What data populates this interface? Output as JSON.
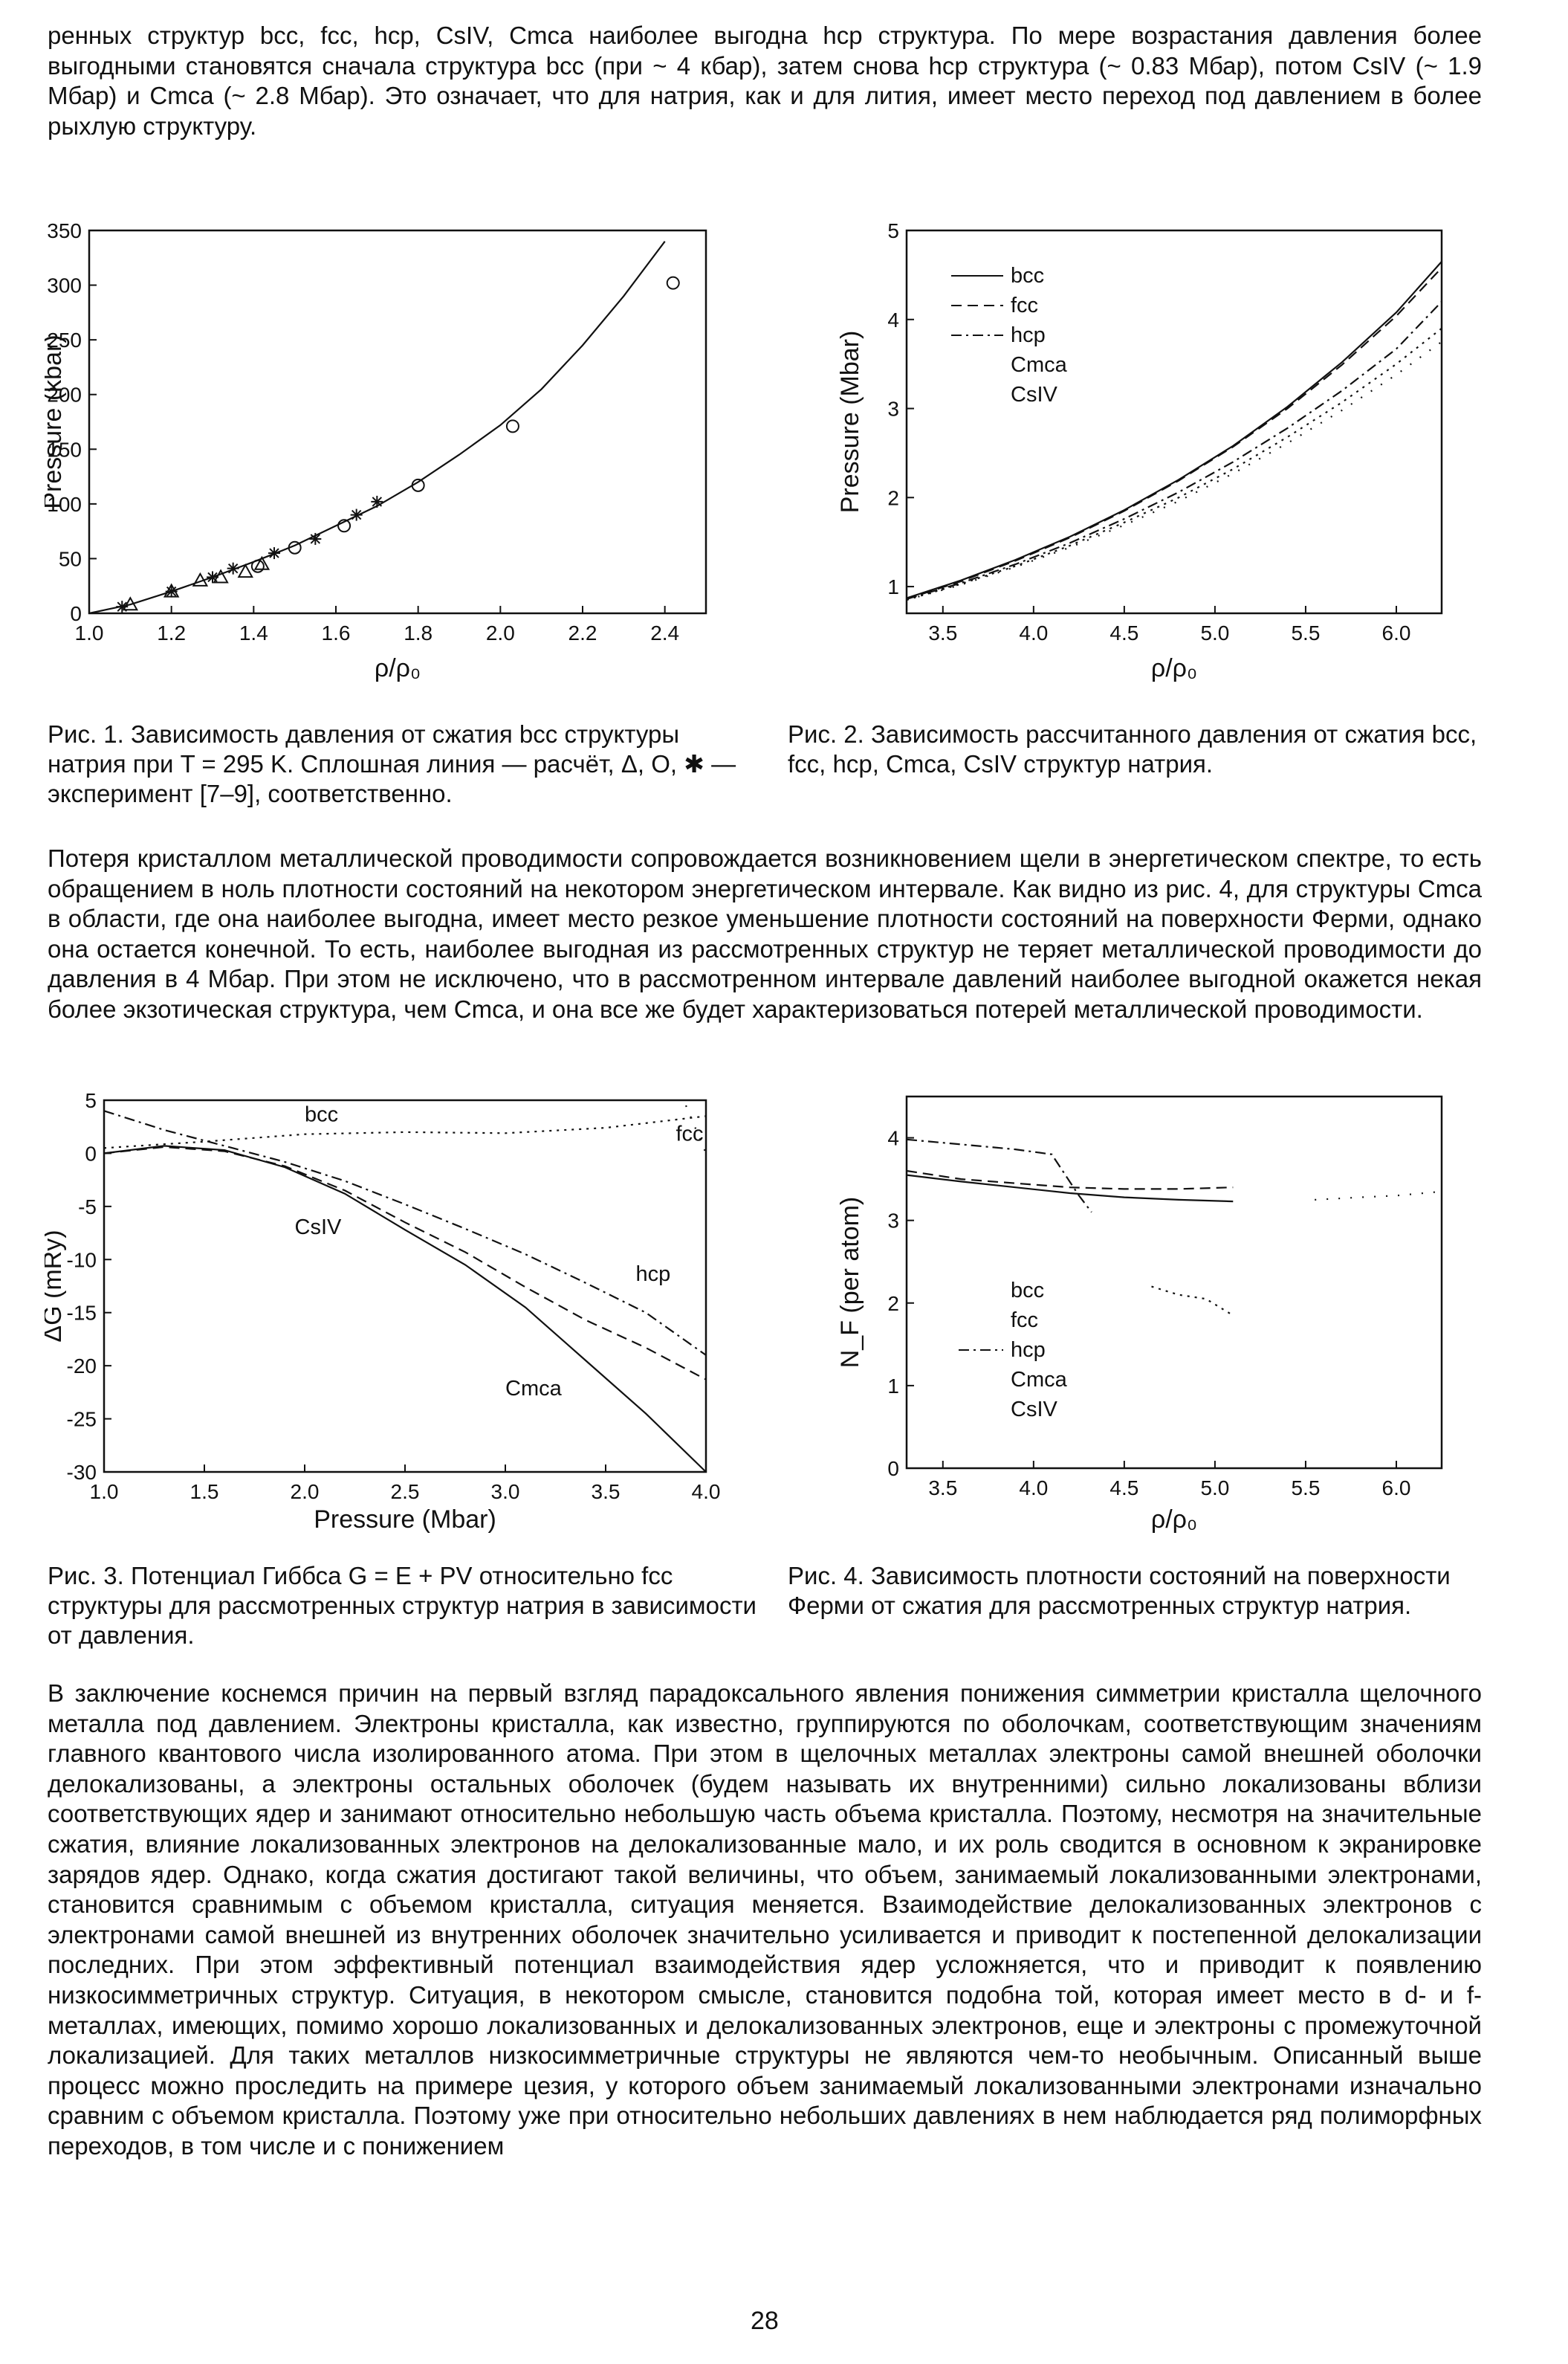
{
  "paragraphs": {
    "p1": "ренных структур bcc, fcc, hcp, CsIV, Cmca наиболее выгодна hcp структура. По мере возрастания давления более выгодными становятся сначала структура bcc (при ~ 4 кбар), затем снова hcp структура (~ 0.83 Мбар), потом CsIV (~ 1.9 Мбар) и Cmca (~ 2.8 Мбар). Это означает, что для натрия, как и для лития, имеет место переход под давлением в более рыхлую структуру.",
    "p2": "Потеря кристаллом металлической проводимости сопровождается возникновением щели в энергетическом спектре, то есть обращением в ноль плотности состояний на некотором энергетическом интервале. Как видно из рис. 4, для структуры Cmca в области, где она наиболее выгодна, имеет место резкое уменьшение плотности состояний на поверхности Ферми, однако она остается конечной. То есть, наиболее выгодная из рассмотренных структур не теряет металлической проводимости до давления в 4 Мбар. При этом не исключено, что в рассмотренном интервале давлений наиболее выгодной окажется некая более экзотическая структура, чем Cmca, и она все же будет характеризоваться потерей металлической проводимости.",
    "p3": "В заключение коснемся причин на первый взгляд парадоксального явления понижения симметрии кристалла щелочного металла под давлением. Электроны кристалла, как известно, группируются по оболочкам, соответствующим значениям главного квантового числа изолированного атома. При этом в щелочных металлах электроны самой внешней оболочки делокализованы, а электроны остальных оболочек (будем называть их внутренними) сильно локализованы вблизи соответствующих ядер и занимают относительно небольшую часть объема кристалла. Поэтому, несмотря на значительные сжатия, влияние локализованных электронов на делокализованные мало, и их роль сводится в основном к экранировке зарядов ядер. Однако, когда сжатия достигают такой величины, что объем, занимаемый локализованными электронами, становится сравнимым с объемом кристалла, ситуация меняется. Взаимодействие делокализованных электронов с электронами самой внешней из внутренних оболочек значительно усиливается и приводит к постепенной делокализации последних. При этом эффективный потенциал взаимодействия ядер усложняется, что и приводит к появлению низкосимметричных структур. Ситуация, в некотором смысле, становится подобна той, которая имеет место в d- и f-металлах, имеющих, помимо хорошо локализованных и делокализованных электронов, еще и электроны с промежуточной локализацией. Для таких металлов низкосимметричные структуры не являются чем-то необычным. Описанный выше процесс можно проследить на примере цезия, у которого объем занимаемый локализованными электронами изначально сравним с объемом кристалла. Поэтому уже при относительно небольших давлениях в нем наблюдается ряд полиморфных переходов, в том числе и с понижением"
  },
  "captions": {
    "fig1": "Рис. 1. Зависимость давления от сжатия bcc структуры натрия при T = 295 K. Сплошная линия — расчёт, Δ, O, ✱ — эксперимент [7–9], соответственно.",
    "fig2": "Рис. 2. Зависимость рассчитанного давления от сжатия bcc, fcc, hcp, Cmca, CsIV структур натрия.",
    "fig3": "Рис. 3. Потенциал Гиббса G = E + PV относительно fcc структуры для рассмотренных структур натрия в зависимости от давления.",
    "fig4": "Рис. 4. Зависимость плотности состояний на поверхности Ферми от сжатия для рассмотренных структур натрия."
  },
  "page_number": "28",
  "chart_data": [
    {
      "id": "fig1",
      "type": "line",
      "xlabel": "ρ/ρ₀",
      "ylabel": "Pressure (kbar)",
      "xlim": [
        1.0,
        2.5
      ],
      "ylim": [
        0,
        350
      ],
      "xticks": [
        "1.0",
        "1.2",
        "1.4",
        "1.6",
        "1.8",
        "2.0",
        "2.2",
        "2.4"
      ],
      "yticks": [
        "0",
        "50",
        "100",
        "150",
        "200",
        "250",
        "300",
        "350"
      ],
      "series": [
        {
          "style": "solid",
          "x": [
            1.0,
            1.1,
            1.2,
            1.3,
            1.4,
            1.5,
            1.6,
            1.7,
            1.8,
            1.9,
            2.0,
            2.1,
            2.2,
            2.3,
            2.4
          ],
          "y": [
            0,
            8,
            20,
            33,
            47,
            62,
            80,
            98,
            120,
            145,
            172,
            205,
            245,
            290,
            340
          ]
        },
        {
          "style": "circle",
          "x": [
            1.41,
            1.5,
            1.62,
            1.8,
            2.03,
            2.42
          ],
          "y": [
            43,
            60,
            80,
            117,
            171,
            302
          ]
        },
        {
          "style": "triangle",
          "x": [
            1.1,
            1.2,
            1.27,
            1.32,
            1.38,
            1.42
          ],
          "y": [
            8,
            20,
            30,
            33,
            38,
            45
          ]
        },
        {
          "style": "star",
          "x": [
            1.08,
            1.2,
            1.3,
            1.35,
            1.45,
            1.55,
            1.65,
            1.7
          ],
          "y": [
            6,
            20,
            33,
            41,
            55,
            68,
            90,
            102
          ]
        }
      ]
    },
    {
      "id": "fig2",
      "type": "line",
      "xlabel": "ρ/ρ₀",
      "ylabel": "Pressure (Mbar)",
      "xlim": [
        3.3,
        6.25
      ],
      "ylim": [
        0.7,
        5
      ],
      "xticks": [
        "3.5",
        "4.0",
        "4.5",
        "5.0",
        "5.5",
        "6.0"
      ],
      "yticks": [
        "1",
        "2",
        "3",
        "4",
        "5"
      ],
      "legend": [
        "bcc",
        "fcc",
        "hcp",
        "Cmca",
        "CsIV"
      ],
      "series": [
        {
          "name": "bcc",
          "style": "solid",
          "x": [
            3.3,
            3.6,
            3.9,
            4.2,
            4.5,
            4.8,
            5.1,
            5.4,
            5.7,
            6.0,
            6.25
          ],
          "y": [
            0.87,
            1.07,
            1.3,
            1.56,
            1.86,
            2.2,
            2.58,
            3.02,
            3.52,
            4.08,
            4.65
          ]
        },
        {
          "name": "fcc",
          "style": "dash",
          "x": [
            3.3,
            3.6,
            3.9,
            4.2,
            4.5,
            4.8,
            5.1,
            5.4,
            5.7,
            6.0,
            6.25
          ],
          "y": [
            0.86,
            1.06,
            1.29,
            1.55,
            1.85,
            2.19,
            2.57,
            3.0,
            3.49,
            4.04,
            4.58
          ]
        },
        {
          "name": "hcp",
          "style": "dashdot",
          "x": [
            3.3,
            3.6,
            3.9,
            4.2,
            4.5,
            4.8,
            5.1,
            5.4,
            5.7,
            6.0,
            6.25
          ],
          "y": [
            0.86,
            1.04,
            1.25,
            1.49,
            1.76,
            2.06,
            2.4,
            2.78,
            3.2,
            3.67,
            4.2
          ]
        },
        {
          "name": "Cmca",
          "style": "dot",
          "x": [
            3.3,
            3.6,
            3.9,
            4.2,
            4.5,
            4.8,
            5.1,
            5.4,
            5.7,
            6.0,
            6.25
          ],
          "y": [
            0.85,
            1.03,
            1.23,
            1.46,
            1.72,
            2.0,
            2.32,
            2.68,
            3.07,
            3.5,
            3.9
          ]
        },
        {
          "name": "CsIV",
          "style": "sparse",
          "x": [
            3.3,
            3.6,
            3.9,
            4.2,
            4.5,
            4.8,
            5.1,
            5.4,
            5.7,
            6.0,
            6.25
          ],
          "y": [
            0.85,
            1.02,
            1.22,
            1.44,
            1.69,
            1.96,
            2.27,
            2.61,
            2.98,
            3.38,
            3.75
          ]
        }
      ]
    },
    {
      "id": "fig3",
      "type": "line",
      "xlabel": "Pressure (Mbar)",
      "ylabel": "ΔG (mRy)",
      "xlim": [
        1.0,
        4.0
      ],
      "ylim": [
        -30,
        5
      ],
      "xticks": [
        "1.0",
        "1.5",
        "2.0",
        "2.5",
        "3.0",
        "3.5",
        "4.0"
      ],
      "yticks": [
        "5",
        "0",
        "-5",
        "-10",
        "-15",
        "-20",
        "-25",
        "-30"
      ],
      "annotations": [
        "bcc",
        "fcc",
        "CsIV",
        "hcp",
        "Cmca"
      ],
      "series": [
        {
          "name": "Cmca",
          "style": "solid",
          "x": [
            1.0,
            1.3,
            1.6,
            1.9,
            2.2,
            2.5,
            2.8,
            3.1,
            3.4,
            3.7,
            4.0
          ],
          "y": [
            0,
            0.7,
            0.3,
            -1.3,
            -3.8,
            -7.2,
            -10.5,
            -14.5,
            -19.5,
            -24.5,
            -30
          ]
        },
        {
          "name": "CsIV",
          "style": "dash",
          "x": [
            1.0,
            1.3,
            1.6,
            1.9,
            2.2,
            2.5,
            2.8,
            3.1,
            3.4,
            3.7,
            4.0
          ],
          "y": [
            0,
            0.6,
            0.2,
            -1.2,
            -3.5,
            -6.5,
            -9.3,
            -12.6,
            -15.7,
            -18.3,
            -21.3
          ]
        },
        {
          "name": "hcp",
          "style": "dashdot",
          "x": [
            1.0,
            1.3,
            1.6,
            1.9,
            2.2,
            2.5,
            2.8,
            3.1,
            3.4,
            3.7,
            4.0
          ],
          "y": [
            4.0,
            2.2,
            0.7,
            -0.8,
            -2.6,
            -4.8,
            -7.1,
            -9.5,
            -12.2,
            -15.0,
            -19.0
          ]
        },
        {
          "name": "bcc",
          "style": "dot",
          "x": [
            1.0,
            1.5,
            2.0,
            2.5,
            3.0,
            3.5,
            4.0
          ],
          "y": [
            0.5,
            1.1,
            1.8,
            2.0,
            1.9,
            2.4,
            3.5
          ]
        },
        {
          "name": "fcc",
          "style": "sparse",
          "x": [
            3.9,
            4.0
          ],
          "y": [
            4.5,
            0
          ]
        }
      ]
    },
    {
      "id": "fig4",
      "type": "line",
      "xlabel": "ρ/ρ₀",
      "ylabel": "N_F (per atom)",
      "xlim": [
        3.3,
        6.25
      ],
      "ylim": [
        0,
        4.5
      ],
      "xticks": [
        "3.5",
        "4.0",
        "4.5",
        "5.0",
        "5.5",
        "6.0"
      ],
      "yticks": [
        "0",
        "1",
        "2",
        "3",
        "4"
      ],
      "legend": [
        "bcc",
        "fcc",
        "hcp",
        "Cmca",
        "CsIV"
      ],
      "series": [
        {
          "name": "bcc",
          "style": "solid",
          "x": [
            3.3,
            3.6,
            3.9,
            4.2,
            4.5,
            4.8,
            5.1
          ],
          "y": [
            3.55,
            3.47,
            3.4,
            3.33,
            3.28,
            3.25,
            3.23
          ]
        },
        {
          "name": "fcc",
          "style": "dash",
          "x": [
            3.3,
            3.6,
            3.9,
            4.2,
            4.5,
            4.8,
            5.1
          ],
          "y": [
            3.6,
            3.5,
            3.45,
            3.4,
            3.38,
            3.38,
            3.4
          ]
        },
        {
          "name": "hcp",
          "style": "dashdot",
          "x": [
            3.3,
            3.6,
            3.9,
            4.1,
            4.25,
            4.32
          ],
          "y": [
            3.98,
            3.92,
            3.86,
            3.8,
            3.3,
            3.1
          ]
        },
        {
          "name": "Cmca",
          "style": "dot",
          "x": [
            4.65,
            4.8,
            4.95,
            5.1
          ],
          "y": [
            2.2,
            2.1,
            2.05,
            1.85
          ]
        },
        {
          "name": "CsIV",
          "style": "sparse",
          "x": [
            5.55,
            5.8,
            6.0,
            6.25
          ],
          "y": [
            3.25,
            3.28,
            3.3,
            3.35
          ]
        }
      ]
    }
  ]
}
